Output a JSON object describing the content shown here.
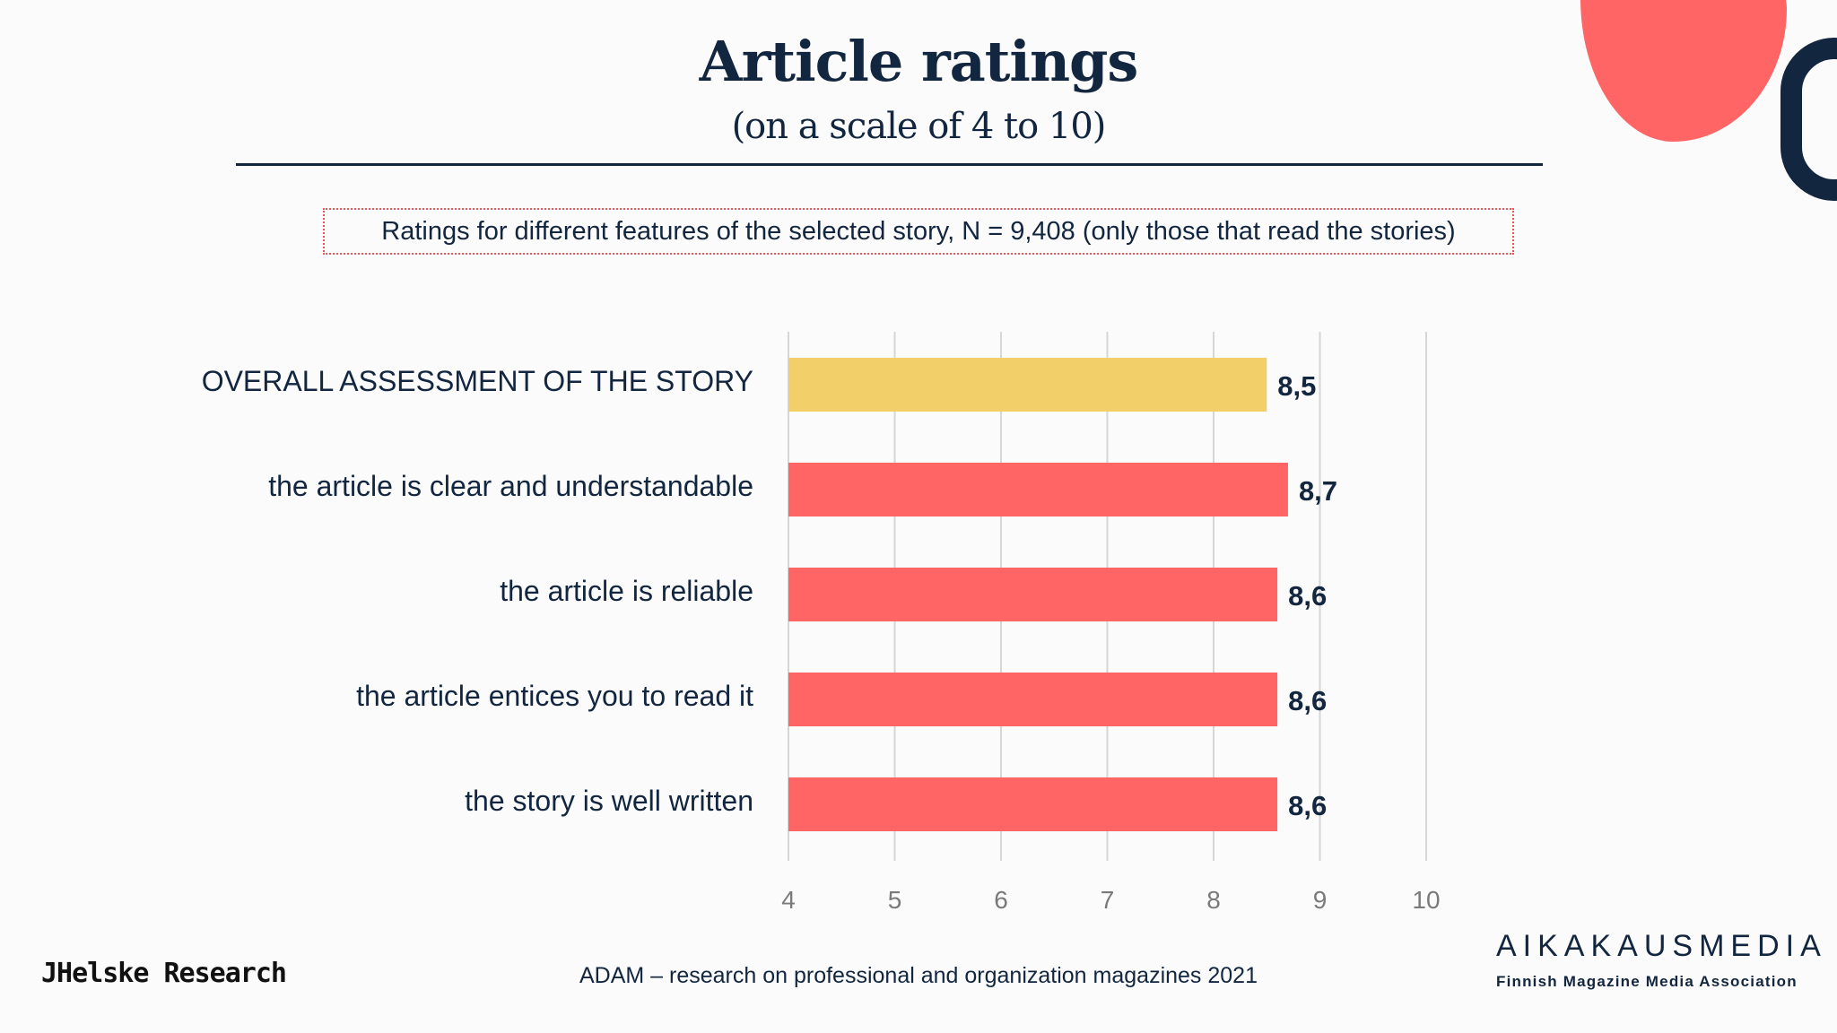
{
  "header": {
    "title": "Article ratings",
    "subtitle": "(on a scale of 4 to 10)",
    "note": "Ratings for different features of the selected story, N = 9,408 (only those that read the stories)"
  },
  "footer": {
    "source": "ADAM – research on professional and organization magazines 2021",
    "brand_left": "JHelske Research",
    "brand_right": "AIKAKAUSMEDIA",
    "brand_right_sub": "Finnish Magazine Media Association"
  },
  "colors": {
    "highlight_bar": "#f2cf68",
    "bar": "#fe6564",
    "text": "#12263f",
    "grid": "#d6d6d6",
    "tick_text": "#7a7a7a"
  },
  "chart_data": {
    "type": "bar",
    "orientation": "horizontal",
    "categories": [
      "OVERALL ASSESSMENT OF THE STORY",
      "the article is clear and understandable",
      "the article is reliable",
      "the article entices you to read it",
      "the story is well written"
    ],
    "values": [
      8.5,
      8.7,
      8.6,
      8.6,
      8.6
    ],
    "data_labels": [
      "8,5",
      "8,7",
      "8,6",
      "8,6",
      "8,6"
    ],
    "highlight_index": 0,
    "xlim": [
      4,
      10
    ],
    "xticks": [
      "4",
      "5",
      "6",
      "7",
      "8",
      "9",
      "10"
    ],
    "grid": true
  }
}
